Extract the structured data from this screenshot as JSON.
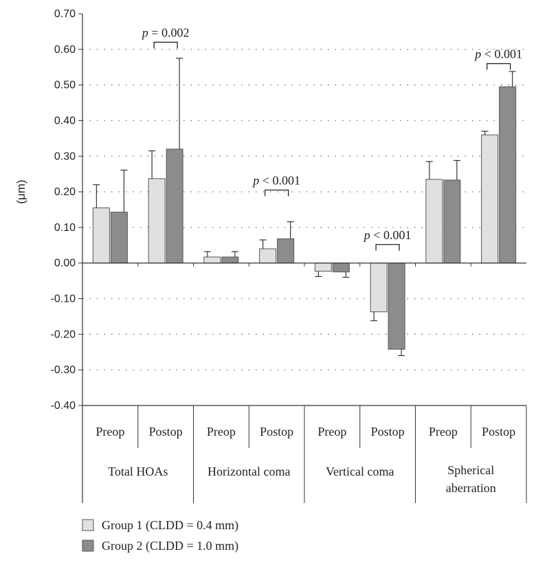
{
  "chart_data": {
    "type": "bar",
    "ylabel": "(μm)",
    "ylim": [
      -0.4,
      0.7
    ],
    "yticks": [
      "0.70",
      "0.60",
      "0.50",
      "0.40",
      "0.30",
      "0.20",
      "0.10",
      "0.00",
      "-0.10",
      "-0.20",
      "-0.30",
      "-0.40"
    ],
    "grid": true,
    "groups": [
      {
        "label": [
          "Total HOAs"
        ],
        "subs": [
          "Preop",
          "Postop"
        ]
      },
      {
        "label": [
          "Horizontal coma"
        ],
        "subs": [
          "Preop",
          "Postop"
        ]
      },
      {
        "label": [
          "Vertical coma"
        ],
        "subs": [
          "Preop",
          "Postop"
        ]
      },
      {
        "label": [
          "Spherical",
          "aberration"
        ],
        "subs": [
          "Preop",
          "Postop"
        ]
      }
    ],
    "series": [
      {
        "name": "Group 1 (CLDD = 0.4 mm)",
        "color": "#e0e0e0",
        "values": [
          0.155,
          0.237,
          0.017,
          0.04,
          -0.023,
          -0.137,
          0.235,
          0.36
        ],
        "errors": [
          0.065,
          0.078,
          0.015,
          0.025,
          0.015,
          0.025,
          0.05,
          0.01
        ]
      },
      {
        "name": "Group 2 (CLDD = 1.0 mm)",
        "color": "#8c8c8c",
        "values": [
          0.143,
          0.32,
          0.017,
          0.068,
          -0.025,
          -0.242,
          0.233,
          0.495
        ],
        "errors": [
          0.118,
          0.255,
          0.015,
          0.048,
          0.015,
          0.018,
          0.055,
          0.043
        ]
      }
    ],
    "annotations": [
      {
        "sub_index": 1,
        "text_parts": [
          "p",
          " = 0.002"
        ],
        "bracket_y": 0.62
      },
      {
        "sub_index": 3,
        "text_parts": [
          "p",
          " < 0.001"
        ],
        "bracket_y": 0.205
      },
      {
        "sub_index": 5,
        "text_parts": [
          "p",
          " < 0.001"
        ],
        "bracket_y": 0.052
      },
      {
        "sub_index": 7,
        "text_parts": [
          "p",
          " < 0.001"
        ],
        "bracket_y": 0.56
      }
    ],
    "legend_position": "bottom-left"
  }
}
